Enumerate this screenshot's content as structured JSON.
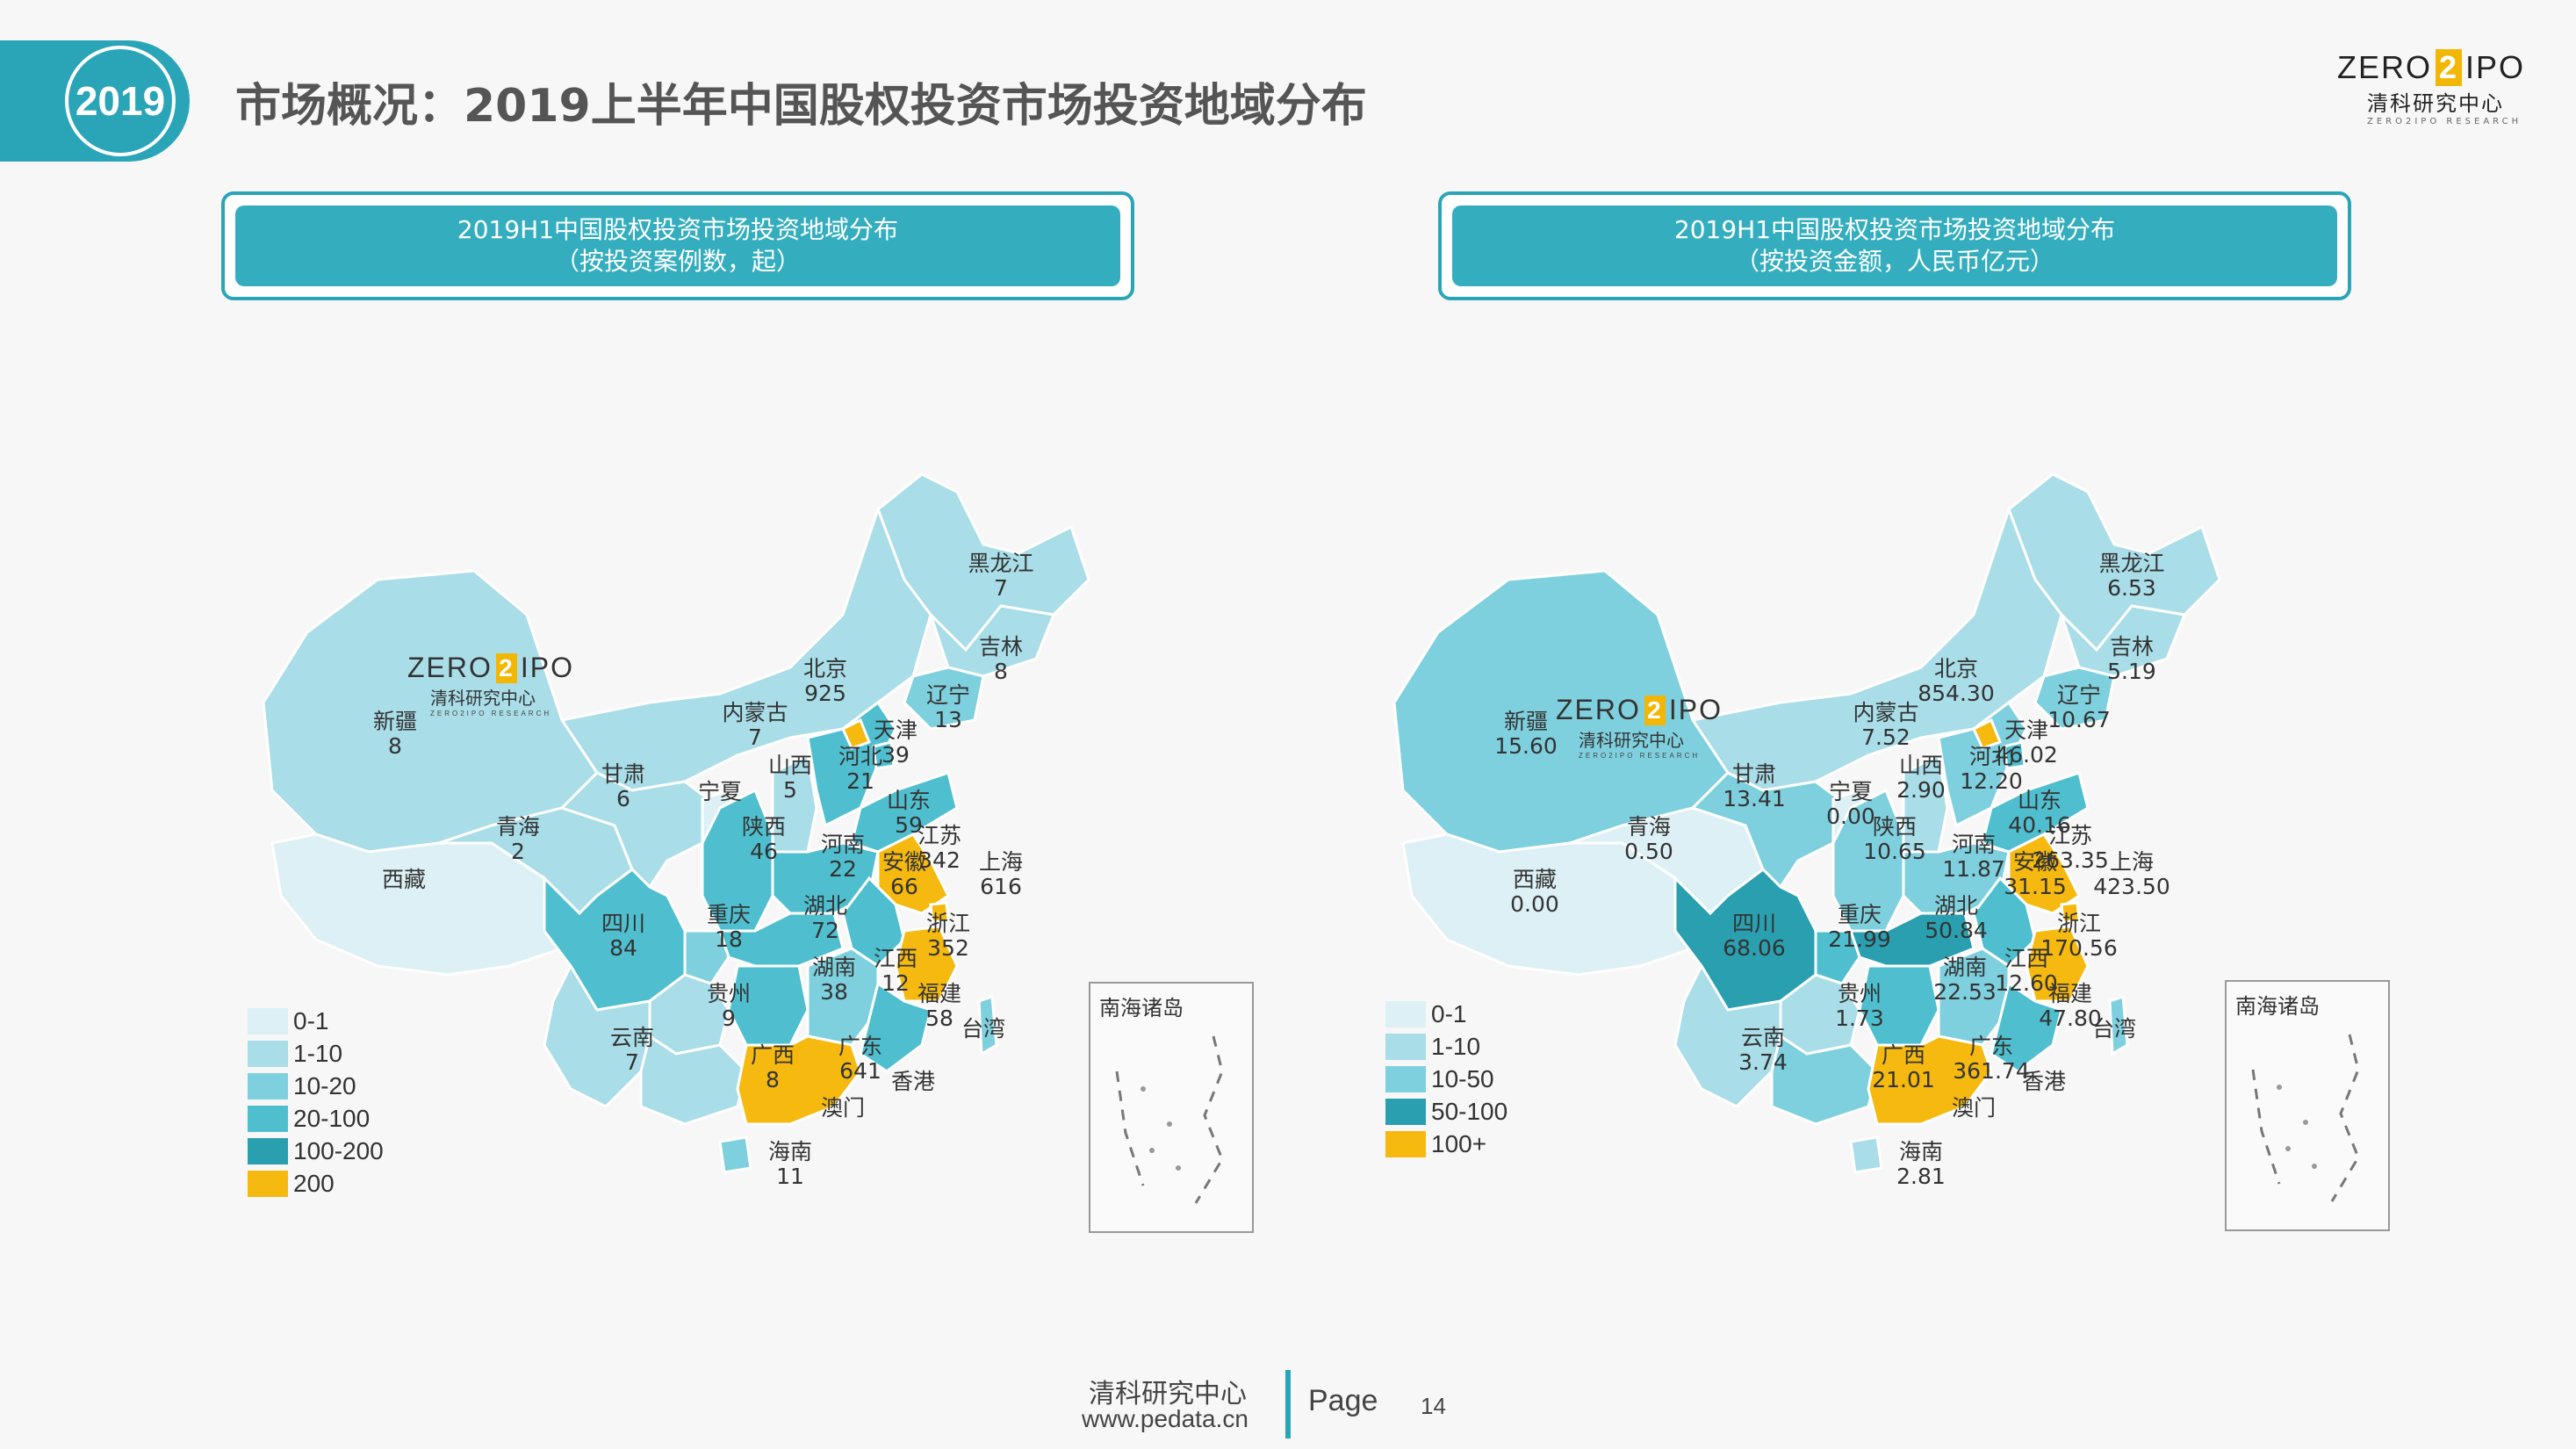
{
  "header": {
    "year": "2019",
    "title": "市场概况：2019上半年中国股权投资市场投资地域分布"
  },
  "logo": {
    "word_left": "ZERO",
    "word_digit": "2",
    "word_right": "IPO",
    "cn": "清科研究中心",
    "en": "ZERO2IPO RESEARCH"
  },
  "colors": {
    "accent": "#2aa5b8",
    "c0": "#dcf0f5",
    "c1": "#a9dde8",
    "c2": "#7fd0de",
    "c3": "#4fbfcf",
    "c4": "#2a9fb0",
    "c5": "#f5b90f"
  },
  "left_panel": {
    "title_line1": "2019H1中国股权投资市场投资地域分布",
    "title_line2": "（按投资案例数，起）",
    "legend": [
      "0-1",
      "1-10",
      "10-20",
      "20-100",
      "100-200",
      "200"
    ],
    "inset_title": "南海诸岛",
    "labels": [
      {
        "name": "黑龙江",
        "value": "7"
      },
      {
        "name": "吉林",
        "value": "8"
      },
      {
        "name": "辽宁",
        "value": "13"
      },
      {
        "name": "北京",
        "value": "925"
      },
      {
        "name": "天津",
        "value": "39"
      },
      {
        "name": "河北",
        "value": "21"
      },
      {
        "name": "山西",
        "value": "5"
      },
      {
        "name": "内蒙古",
        "value": "7"
      },
      {
        "name": "新疆",
        "value": "8"
      },
      {
        "name": "甘肃",
        "value": "6"
      },
      {
        "name": "宁夏",
        "value": ""
      },
      {
        "name": "青海",
        "value": "2"
      },
      {
        "name": "西藏",
        "value": ""
      },
      {
        "name": "陕西",
        "value": "46"
      },
      {
        "name": "河南",
        "value": "22"
      },
      {
        "name": "山东",
        "value": "59"
      },
      {
        "name": "江苏",
        "value": "342"
      },
      {
        "name": "安徽",
        "value": "66"
      },
      {
        "name": "上海",
        "value": "616"
      },
      {
        "name": "浙江",
        "value": "352"
      },
      {
        "name": "四川",
        "value": "84"
      },
      {
        "name": "重庆",
        "value": "18"
      },
      {
        "name": "湖北",
        "value": "72"
      },
      {
        "name": "湖南",
        "value": "38"
      },
      {
        "name": "江西",
        "value": "12"
      },
      {
        "name": "福建",
        "value": "58"
      },
      {
        "name": "贵州",
        "value": "9"
      },
      {
        "name": "云南",
        "value": "7"
      },
      {
        "name": "广西",
        "value": "8"
      },
      {
        "name": "广东",
        "value": "641"
      },
      {
        "name": "香港",
        "value": ""
      },
      {
        "name": "澳门",
        "value": ""
      },
      {
        "name": "台湾",
        "value": ""
      },
      {
        "name": "海南",
        "value": "11"
      }
    ]
  },
  "right_panel": {
    "title_line1": "2019H1中国股权投资市场投资地域分布",
    "title_line2": "（按投资金额，人民币亿元）",
    "legend": [
      "0-1",
      "1-10",
      "10-50",
      "50-100",
      "100+"
    ],
    "inset_title": "南海诸岛",
    "labels": [
      {
        "name": "黑龙江",
        "value": "6.53"
      },
      {
        "name": "吉林",
        "value": "5.19"
      },
      {
        "name": "辽宁",
        "value": "10.67"
      },
      {
        "name": "北京",
        "value": "854.30"
      },
      {
        "name": "天津",
        "value": "46.02"
      },
      {
        "name": "河北",
        "value": "12.20"
      },
      {
        "name": "山西",
        "value": "2.90"
      },
      {
        "name": "内蒙古",
        "value": "7.52"
      },
      {
        "name": "新疆",
        "value": "15.60"
      },
      {
        "name": "甘肃",
        "value": "13.41"
      },
      {
        "name": "宁夏",
        "value": "0.00"
      },
      {
        "name": "青海",
        "value": "0.50"
      },
      {
        "name": "西藏",
        "value": "0.00"
      },
      {
        "name": "陕西",
        "value": "10.65"
      },
      {
        "name": "河南",
        "value": "11.87"
      },
      {
        "name": "山东",
        "value": "40.16"
      },
      {
        "name": "江苏",
        "value": "263.35"
      },
      {
        "name": "安徽",
        "value": "31.15"
      },
      {
        "name": "上海",
        "value": "423.50"
      },
      {
        "name": "浙江",
        "value": "170.56"
      },
      {
        "name": "四川",
        "value": "68.06"
      },
      {
        "name": "重庆",
        "value": "21.99"
      },
      {
        "name": "湖北",
        "value": "50.84"
      },
      {
        "name": "湖南",
        "value": "22.53"
      },
      {
        "name": "江西",
        "value": "12.60"
      },
      {
        "name": "福建",
        "value": "47.80"
      },
      {
        "name": "贵州",
        "value": "1.73"
      },
      {
        "name": "云南",
        "value": "3.74"
      },
      {
        "name": "广西",
        "value": "21.01"
      },
      {
        "name": "广东",
        "value": "361.74"
      },
      {
        "name": "香港",
        "value": ""
      },
      {
        "name": "澳门",
        "value": ""
      },
      {
        "name": "台湾",
        "value": ""
      },
      {
        "name": "海南",
        "value": "2.81"
      }
    ]
  },
  "footer": {
    "org": "清科研究中心",
    "url": "www.pedata.cn",
    "page_label": "Page",
    "page_number": "14"
  }
}
